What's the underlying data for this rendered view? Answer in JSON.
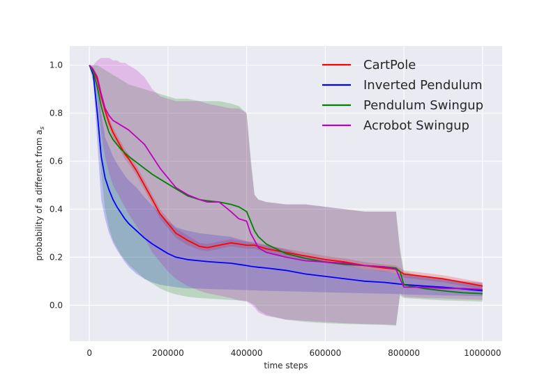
{
  "chart_data": {
    "type": "line",
    "title": "",
    "xlabel": "time steps",
    "ylabel_prefix": "probability of a different from a",
    "ylabel_subscript": "s",
    "xlim": [
      -50000,
      1050000
    ],
    "ylim": [
      -0.15,
      1.08
    ],
    "xticks": [
      0,
      200000,
      400000,
      600000,
      800000,
      1000000
    ],
    "xtick_labels": [
      "0",
      "200000",
      "400000",
      "600000",
      "800000",
      "1000000"
    ],
    "yticks": [
      0.0,
      0.2,
      0.4,
      0.6,
      0.8,
      1.0
    ],
    "ytick_labels": [
      "0.0",
      "0.2",
      "0.4",
      "0.6",
      "0.8",
      "1.0"
    ],
    "grid": true,
    "legend_position": "top-right",
    "x": [
      0,
      10000,
      20000,
      30000,
      40000,
      50000,
      60000,
      70000,
      80000,
      90000,
      100000,
      120000,
      140000,
      160000,
      180000,
      200000,
      220000,
      250000,
      280000,
      300000,
      330000,
      360000,
      380000,
      400000,
      410000,
      420000,
      430000,
      450000,
      500000,
      550000,
      600000,
      650000,
      700000,
      750000,
      780000,
      790000,
      800000,
      850000,
      900000,
      950000,
      1000000
    ],
    "series": [
      {
        "name": "CartPole",
        "color": "#ff0000",
        "values": [
          1.0,
          0.98,
          0.94,
          0.87,
          0.81,
          0.76,
          0.72,
          0.69,
          0.66,
          0.63,
          0.61,
          0.56,
          0.5,
          0.44,
          0.38,
          0.34,
          0.3,
          0.27,
          0.245,
          0.24,
          0.25,
          0.26,
          0.255,
          0.25,
          0.25,
          0.25,
          0.245,
          0.235,
          0.22,
          0.205,
          0.19,
          0.18,
          0.165,
          0.155,
          0.15,
          0.14,
          0.13,
          0.12,
          0.11,
          0.095,
          0.08
        ],
        "band_lower": [
          1.0,
          0.97,
          0.92,
          0.85,
          0.79,
          0.74,
          0.7,
          0.67,
          0.64,
          0.61,
          0.59,
          0.54,
          0.48,
          0.42,
          0.36,
          0.32,
          0.28,
          0.25,
          0.23,
          0.225,
          0.235,
          0.245,
          0.24,
          0.235,
          0.235,
          0.235,
          0.23,
          0.22,
          0.205,
          0.19,
          0.175,
          0.165,
          0.15,
          0.14,
          0.135,
          0.125,
          0.115,
          0.105,
          0.095,
          0.08,
          0.065
        ],
        "band_upper": [
          1.0,
          0.99,
          0.96,
          0.89,
          0.83,
          0.78,
          0.74,
          0.71,
          0.68,
          0.65,
          0.63,
          0.58,
          0.52,
          0.46,
          0.4,
          0.36,
          0.32,
          0.29,
          0.26,
          0.255,
          0.265,
          0.275,
          0.27,
          0.265,
          0.265,
          0.265,
          0.26,
          0.25,
          0.235,
          0.22,
          0.205,
          0.195,
          0.18,
          0.17,
          0.165,
          0.155,
          0.145,
          0.135,
          0.125,
          0.11,
          0.095
        ]
      },
      {
        "name": "Inverted Pendulum",
        "color": "#0000ff",
        "values": [
          1.0,
          0.96,
          0.8,
          0.62,
          0.53,
          0.48,
          0.44,
          0.41,
          0.385,
          0.36,
          0.34,
          0.31,
          0.28,
          0.255,
          0.235,
          0.215,
          0.2,
          0.19,
          0.185,
          0.182,
          0.178,
          0.175,
          0.17,
          0.165,
          0.162,
          0.16,
          0.158,
          0.155,
          0.145,
          0.13,
          0.12,
          0.11,
          0.1,
          0.095,
          0.09,
          0.088,
          0.086,
          0.08,
          0.075,
          0.068,
          0.06
        ],
        "band_lower": [
          1.0,
          0.93,
          0.68,
          0.44,
          0.36,
          0.3,
          0.26,
          0.23,
          0.205,
          0.18,
          0.16,
          0.13,
          0.11,
          0.095,
          0.085,
          0.08,
          0.075,
          0.07,
          0.07,
          0.068,
          0.066,
          0.065,
          0.064,
          0.063,
          0.062,
          0.062,
          0.061,
          0.06,
          0.058,
          0.056,
          0.054,
          0.052,
          0.05,
          0.048,
          0.047,
          0.046,
          0.045,
          0.043,
          0.041,
          0.039,
          0.037
        ],
        "band_upper": [
          1.0,
          0.99,
          0.92,
          0.8,
          0.7,
          0.66,
          0.62,
          0.59,
          0.565,
          0.54,
          0.52,
          0.49,
          0.45,
          0.415,
          0.385,
          0.35,
          0.325,
          0.31,
          0.3,
          0.296,
          0.29,
          0.285,
          0.276,
          0.267,
          0.262,
          0.258,
          0.255,
          0.25,
          0.232,
          0.204,
          0.186,
          0.168,
          0.15,
          0.142,
          0.133,
          0.13,
          0.127,
          0.117,
          0.109,
          0.097,
          0.083
        ]
      },
      {
        "name": "Pendulum Swingup",
        "color": "#008000",
        "values": [
          1.0,
          0.97,
          0.91,
          0.83,
          0.77,
          0.72,
          0.69,
          0.67,
          0.65,
          0.635,
          0.62,
          0.595,
          0.57,
          0.545,
          0.525,
          0.505,
          0.485,
          0.455,
          0.44,
          0.435,
          0.43,
          0.42,
          0.41,
          0.39,
          0.35,
          0.31,
          0.285,
          0.255,
          0.215,
          0.195,
          0.18,
          0.17,
          0.165,
          0.16,
          0.155,
          0.14,
          0.085,
          0.07,
          0.06,
          0.052,
          0.048
        ],
        "band_lower": [
          1.0,
          0.93,
          0.78,
          0.55,
          0.4,
          0.32,
          0.27,
          0.24,
          0.21,
          0.19,
          0.17,
          0.14,
          0.11,
          0.09,
          0.07,
          0.055,
          0.045,
          0.035,
          0.03,
          0.028,
          0.025,
          0.022,
          0.02,
          0.018,
          0.01,
          0.0,
          -0.02,
          -0.04,
          -0.06,
          -0.07,
          -0.075,
          -0.078,
          -0.08,
          -0.082,
          -0.085,
          0.04,
          0.03,
          0.025,
          0.02,
          0.018,
          0.015
        ],
        "band_upper": [
          1.0,
          1.0,
          1.0,
          0.99,
          0.98,
          0.97,
          0.96,
          0.95,
          0.94,
          0.93,
          0.92,
          0.91,
          0.9,
          0.89,
          0.88,
          0.87,
          0.86,
          0.86,
          0.85,
          0.85,
          0.85,
          0.84,
          0.83,
          0.8,
          0.62,
          0.46,
          0.44,
          0.43,
          0.42,
          0.42,
          0.41,
          0.4,
          0.39,
          0.39,
          0.39,
          0.24,
          0.14,
          0.12,
          0.11,
          0.1,
          0.09
        ]
      },
      {
        "name": "Acrobot Swingup",
        "color": "#bf00bf",
        "values": [
          1.0,
          0.98,
          0.95,
          0.88,
          0.82,
          0.79,
          0.77,
          0.76,
          0.75,
          0.74,
          0.73,
          0.7,
          0.67,
          0.62,
          0.57,
          0.53,
          0.49,
          0.46,
          0.44,
          0.43,
          0.43,
          0.39,
          0.36,
          0.35,
          0.3,
          0.27,
          0.24,
          0.22,
          0.2,
          0.185,
          0.18,
          0.175,
          0.165,
          0.16,
          0.15,
          0.11,
          0.075,
          0.075,
          0.07,
          0.07,
          0.065
        ],
        "band_lower": [
          1.0,
          0.96,
          0.88,
          0.72,
          0.62,
          0.55,
          0.5,
          0.47,
          0.44,
          0.41,
          0.38,
          0.33,
          0.28,
          0.22,
          0.18,
          0.14,
          0.11,
          0.08,
          0.06,
          0.05,
          0.04,
          0.03,
          0.02,
          0.015,
          0.005,
          -0.01,
          -0.03,
          -0.045,
          -0.06,
          -0.065,
          -0.07,
          -0.075,
          -0.078,
          -0.08,
          -0.082,
          0.05,
          0.035,
          0.03,
          0.028,
          0.025,
          0.022
        ],
        "band_upper": [
          1.0,
          1.0,
          1.02,
          1.03,
          1.03,
          1.03,
          1.02,
          1.02,
          1.01,
          1.01,
          1.0,
          0.98,
          0.95,
          0.9,
          0.87,
          0.86,
          0.85,
          0.85,
          0.85,
          0.84,
          0.83,
          0.82,
          0.82,
          0.8,
          0.6,
          0.46,
          0.44,
          0.43,
          0.42,
          0.42,
          0.41,
          0.4,
          0.39,
          0.39,
          0.39,
          0.22,
          0.13,
          0.12,
          0.11,
          0.1,
          0.095
        ]
      }
    ]
  }
}
